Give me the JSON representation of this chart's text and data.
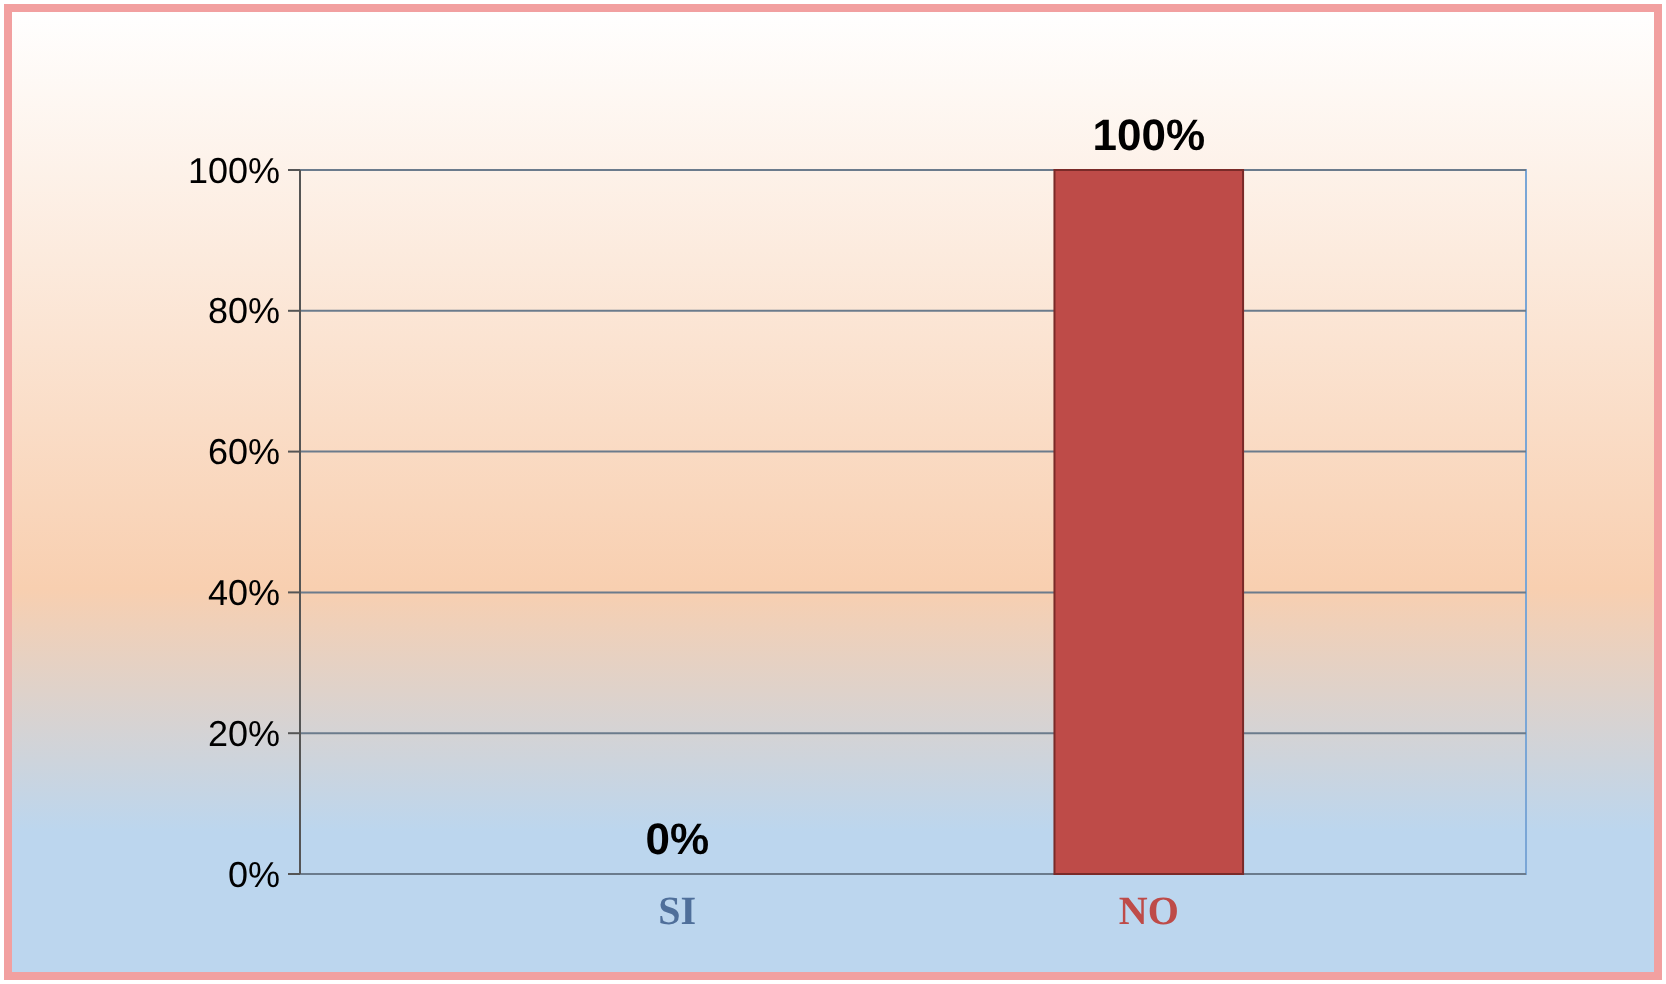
{
  "chart_data": {
    "type": "bar",
    "categories": [
      "SI",
      "NO"
    ],
    "values": [
      0,
      100
    ],
    "colors": [
      "#4f6f9a",
      "#be4b48"
    ],
    "value_labels": [
      "0%",
      "100%"
    ],
    "ylim": [
      0,
      100
    ],
    "yticks": [
      {
        "value": 0,
        "label": "0%"
      },
      {
        "value": 20,
        "label": "20%"
      },
      {
        "value": 40,
        "label": "40%"
      },
      {
        "value": 60,
        "label": "60%"
      },
      {
        "value": 80,
        "label": "80%"
      },
      {
        "value": 100,
        "label": "100%"
      }
    ],
    "grid": "y"
  }
}
